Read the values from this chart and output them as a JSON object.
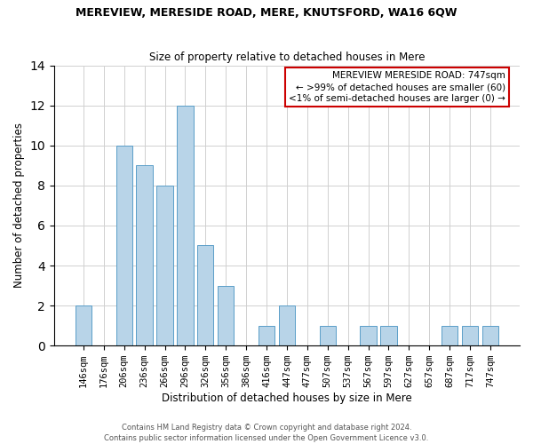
{
  "title": "MEREVIEW, MERESIDE ROAD, MERE, KNUTSFORD, WA16 6QW",
  "subtitle": "Size of property relative to detached houses in Mere",
  "xlabel": "Distribution of detached houses by size in Mere",
  "ylabel": "Number of detached properties",
  "bar_color": "#b8d4e8",
  "bar_edge_color": "#5a9ec8",
  "categories": [
    "146sqm",
    "176sqm",
    "206sqm",
    "236sqm",
    "266sqm",
    "296sqm",
    "326sqm",
    "356sqm",
    "386sqm",
    "416sqm",
    "447sqm",
    "477sqm",
    "507sqm",
    "537sqm",
    "567sqm",
    "597sqm",
    "627sqm",
    "657sqm",
    "687sqm",
    "717sqm",
    "747sqm"
  ],
  "values": [
    2,
    0,
    10,
    9,
    8,
    12,
    5,
    3,
    0,
    1,
    2,
    0,
    1,
    0,
    1,
    1,
    0,
    0,
    1,
    1,
    1
  ],
  "ylim": [
    0,
    14
  ],
  "yticks": [
    0,
    2,
    4,
    6,
    8,
    10,
    12,
    14
  ],
  "legend_title": "MEREVIEW MERESIDE ROAD: 747sqm",
  "legend_line1": "← >99% of detached houses are smaller (60)",
  "legend_line2": "<1% of semi-detached houses are larger (0) →",
  "legend_box_color": "#ffffff",
  "legend_box_edge_color": "#cc0000",
  "highlight_bar_index": 20,
  "footer1": "Contains HM Land Registry data © Crown copyright and database right 2024.",
  "footer2": "Contains public sector information licensed under the Open Government Licence v3.0.",
  "bg_color": "#ffffff",
  "grid_color": "#d0d0d0"
}
